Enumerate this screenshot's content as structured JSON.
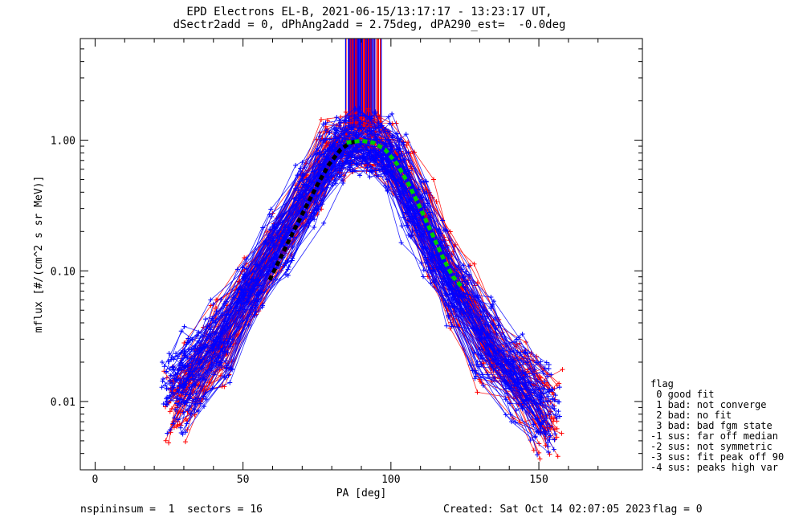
{
  "chart_data": {
    "type": "line",
    "title_line1": "EPD Electrons EL-B, 2021-06-15/13:17:17 - 13:23:17 UT,",
    "title_line2": "dSectr2add = 0, dPhAng2add = 2.75deg, dPA290_est=  -0.0deg",
    "xlabel": "PA [deg]",
    "ylabel": "mflux [#/(cm^2 s sr MeV)]",
    "xlim": [
      -5,
      185
    ],
    "ylim": [
      0.003,
      6.0
    ],
    "yscale": "log",
    "x_ticks": [
      0,
      50,
      100,
      150
    ],
    "x_tick_labels": [
      "0",
      "50",
      "100",
      "150"
    ],
    "y_ticks": [
      0.01,
      0.1,
      1.0
    ],
    "y_tick_labels": [
      "0.01",
      "0.10",
      "1.00"
    ],
    "series": [
      {
        "name": "blue spin traces",
        "color": "#0000ff",
        "x": [
          27,
          33,
          42,
          52,
          62,
          72,
          79,
          84,
          90,
          96,
          101,
          108,
          115,
          122,
          132,
          142,
          152
        ],
        "values": [
          0.012,
          0.018,
          0.03,
          0.07,
          0.16,
          0.38,
          0.75,
          0.9,
          0.95,
          0.9,
          0.65,
          0.3,
          0.14,
          0.07,
          0.03,
          0.016,
          0.009
        ]
      },
      {
        "name": "red spin traces",
        "color": "#ff0000",
        "x": [
          28,
          34,
          43,
          53,
          63,
          73,
          80,
          85,
          91,
          97,
          103,
          110,
          117,
          124,
          134,
          144,
          153
        ],
        "values": [
          0.01,
          0.016,
          0.028,
          0.075,
          0.18,
          0.42,
          0.78,
          0.92,
          0.95,
          0.88,
          0.6,
          0.28,
          0.12,
          0.06,
          0.025,
          0.014,
          0.008
        ]
      },
      {
        "name": "fit (black)",
        "color": "#000000",
        "x": [
          59,
          63,
          67,
          71,
          75,
          79,
          83,
          86,
          88
        ],
        "values": [
          0.085,
          0.13,
          0.2,
          0.3,
          0.45,
          0.65,
          0.85,
          0.95,
          0.98
        ]
      },
      {
        "name": "fit (green)",
        "color": "#00cc00",
        "x": [
          85,
          90,
          94,
          98,
          102,
          106,
          110,
          114,
          118,
          121,
          124
        ],
        "values": [
          0.96,
          0.99,
          0.96,
          0.85,
          0.66,
          0.46,
          0.3,
          0.19,
          0.12,
          0.09,
          0.075
        ]
      }
    ],
    "legend": {
      "title": "flag",
      "entries": [
        " 0 good fit",
        " 1 bad: not converge",
        " 2 bad: no fit",
        " 3 bad: bad fgm state",
        "-1 sus: far off median",
        "-2 sus: not symmetric",
        "-3 sus: fit peak off 90",
        "-4 sus: peaks high var"
      ]
    }
  },
  "footer": {
    "left": "nspininsum =  1  sectors = 16",
    "created": "Created: Sat Oct 14 02:07:05 2023",
    "flag": "flag = 0"
  }
}
